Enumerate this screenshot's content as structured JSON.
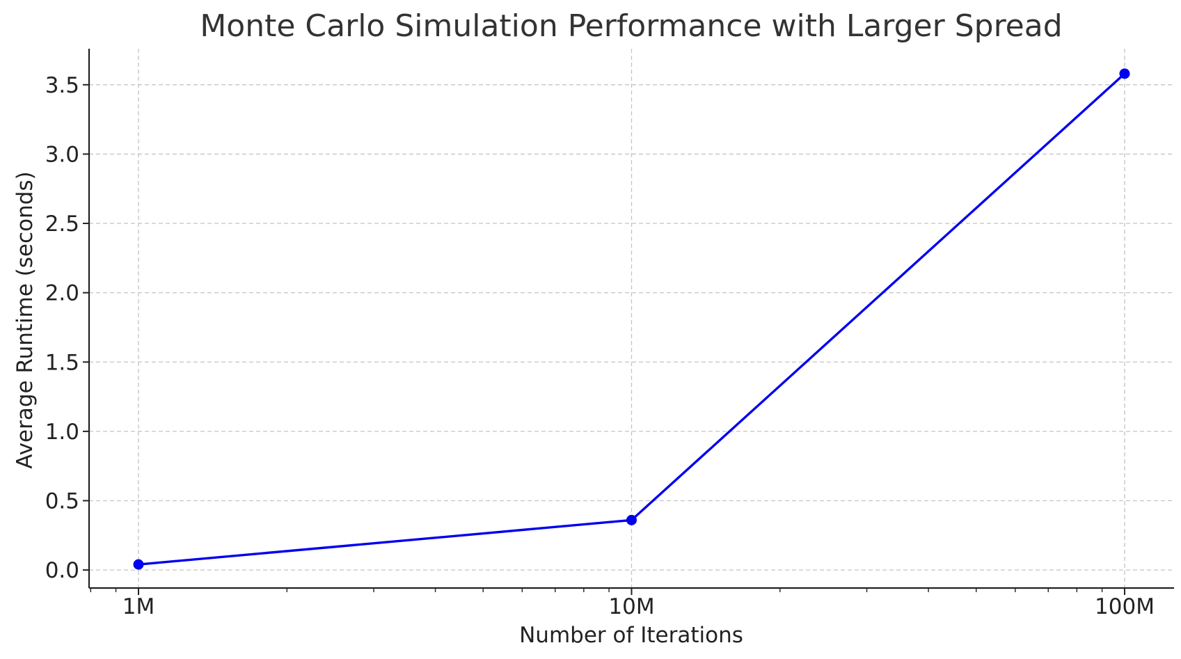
{
  "chart_data": {
    "type": "line",
    "title": "Monte Carlo Simulation Performance with Larger Spread",
    "xlabel": "Number of Iterations",
    "ylabel": "Average Runtime (seconds)",
    "x_scale": "log",
    "x": [
      1000000,
      10000000,
      100000000
    ],
    "x_tick_labels": [
      "1M",
      "10M",
      "100M"
    ],
    "y_ticks": [
      0.0,
      0.5,
      1.0,
      1.5,
      2.0,
      2.5,
      3.0,
      3.5
    ],
    "y_tick_labels": [
      "0.0",
      "0.5",
      "1.0",
      "1.5",
      "2.0",
      "2.5",
      "3.0",
      "3.5"
    ],
    "ylim": [
      -0.13,
      3.76
    ],
    "grid": true,
    "series": [
      {
        "values": [
          0.04,
          0.36,
          3.58
        ],
        "color": "#0000ee",
        "marker": "circle"
      }
    ]
  }
}
